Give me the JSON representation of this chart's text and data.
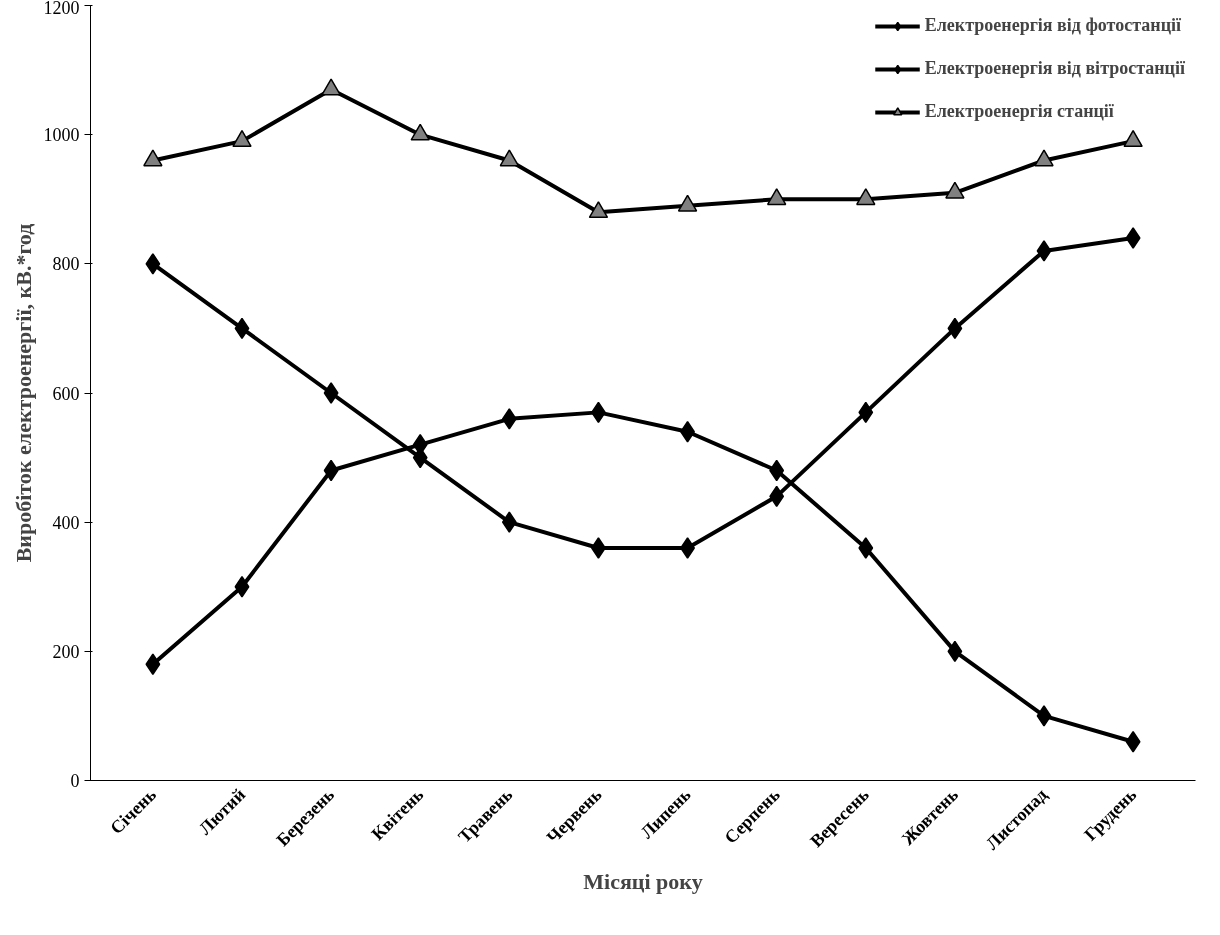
{
  "chart_data": {
    "type": "line",
    "xlabel": "Місяці року",
    "ylabel": "Виробіток електроенергії, кВ.*год",
    "categories": [
      "Січень",
      "Лютий",
      "Березень",
      "Квітень",
      "Травень",
      "Червень",
      "Липень",
      "Серпень",
      "Вересень",
      "Жовтень",
      "Листопад",
      "Грудень"
    ],
    "series": [
      {
        "name": "Електроенергія від фотостанції",
        "color": "#000000",
        "marker": "diamond",
        "values": [
          180,
          300,
          480,
          520,
          560,
          570,
          540,
          480,
          360,
          200,
          100,
          60
        ]
      },
      {
        "name": "Електроенергія від вітростанції",
        "color": "#000000",
        "marker": "diamond",
        "values": [
          800,
          700,
          600,
          500,
          400,
          360,
          360,
          440,
          570,
          700,
          820,
          840
        ]
      },
      {
        "name": "Електроенергія станції",
        "color": "#000000",
        "marker": "triangle",
        "values": [
          960,
          990,
          1070,
          1000,
          960,
          880,
          890,
          900,
          900,
          910,
          960,
          990
        ]
      }
    ],
    "ylim": [
      0,
      1200
    ],
    "yticks": [
      0,
      200,
      400,
      600,
      800,
      1000,
      1200
    ],
    "grid": false,
    "legend": "top right",
    "line_style": "solid"
  }
}
